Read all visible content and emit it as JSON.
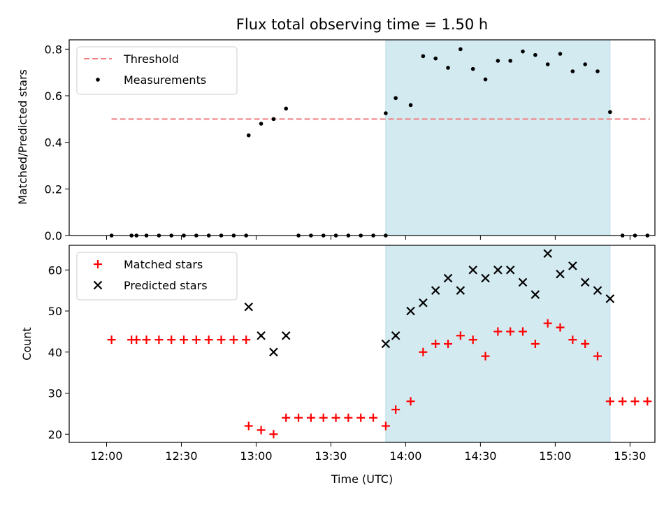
{
  "chart_data": [
    {
      "type": "scatter",
      "title": "Flux total observing time = 1.50 h",
      "xlabel": "",
      "ylabel": "Matched/Predicted stars",
      "ylim": [
        0,
        0.84
      ],
      "yticks": [
        "0.0",
        "0.2",
        "0.4",
        "0.6",
        "0.8"
      ],
      "shaded_region": {
        "start": "13:52",
        "end": "15:22",
        "color": "#d3eaf1"
      },
      "legend_position": "top-left",
      "threshold": {
        "name": "Threshold",
        "value": 0.5,
        "x_start": "12:02",
        "x_end": "15:38",
        "color": "#f08080"
      },
      "series": [
        {
          "name": "Measurements",
          "marker": "dot",
          "color": "#000000",
          "x": [
            "12:02",
            "12:10",
            "12:12",
            "12:16",
            "12:21",
            "12:26",
            "12:31",
            "12:36",
            "12:41",
            "12:46",
            "12:51",
            "12:56",
            "12:57",
            "13:02",
            "13:07",
            "13:12",
            "13:17",
            "13:22",
            "13:27",
            "13:32",
            "13:37",
            "13:42",
            "13:47",
            "13:52",
            "13:52",
            "13:56",
            "14:02",
            "14:07",
            "14:12",
            "14:17",
            "14:22",
            "14:27",
            "14:32",
            "14:37",
            "14:42",
            "14:47",
            "14:52",
            "14:57",
            "15:02",
            "15:07",
            "15:12",
            "15:17",
            "15:22",
            "15:27",
            "15:32",
            "15:37"
          ],
          "y": [
            0,
            0,
            0,
            0,
            0,
            0,
            0,
            0,
            0,
            0,
            0,
            0,
            0.43,
            0.48,
            0.5,
            0.545,
            0,
            0,
            0,
            0,
            0,
            0,
            0,
            0,
            0.525,
            0.59,
            0.56,
            0.77,
            0.76,
            0.72,
            0.8,
            0.715,
            0.67,
            0.75,
            0.75,
            0.79,
            0.775,
            0.735,
            0.78,
            0.705,
            0.735,
            0.705,
            0.53,
            0,
            0,
            0
          ]
        }
      ]
    },
    {
      "type": "scatter",
      "title": "",
      "xlabel": "Time (UTC)",
      "ylabel": "Count",
      "ylim": [
        18,
        66
      ],
      "yticks": [
        "20",
        "30",
        "40",
        "50",
        "60"
      ],
      "xticks": [
        "12:00",
        "12:30",
        "13:00",
        "13:30",
        "14:00",
        "14:30",
        "15:00",
        "15:30"
      ],
      "shaded_region": {
        "start": "13:52",
        "end": "15:22",
        "color": "#d3eaf1"
      },
      "legend_position": "top-left",
      "series": [
        {
          "name": "Matched stars",
          "marker": "plus",
          "color": "#ff0000",
          "x": [
            "12:02",
            "12:10",
            "12:12",
            "12:16",
            "12:21",
            "12:26",
            "12:31",
            "12:36",
            "12:41",
            "12:46",
            "12:51",
            "12:56",
            "12:57",
            "13:02",
            "13:07",
            "13:12",
            "13:17",
            "13:22",
            "13:27",
            "13:32",
            "13:37",
            "13:42",
            "13:47",
            "13:52",
            "13:56",
            "14:02",
            "14:07",
            "14:12",
            "14:17",
            "14:22",
            "14:27",
            "14:32",
            "14:37",
            "14:42",
            "14:47",
            "14:52",
            "14:57",
            "15:02",
            "15:07",
            "15:12",
            "15:17",
            "15:22",
            "15:27",
            "15:32",
            "15:37"
          ],
          "y": [
            43,
            43,
            43,
            43,
            43,
            43,
            43,
            43,
            43,
            43,
            43,
            43,
            22,
            21,
            20,
            24,
            24,
            24,
            24,
            24,
            24,
            24,
            24,
            22,
            26,
            28,
            40,
            42,
            42,
            44,
            43,
            39,
            45,
            45,
            45,
            42,
            47,
            46,
            43,
            42,
            39,
            28,
            28,
            28,
            28
          ]
        },
        {
          "name": "Predicted stars",
          "marker": "x",
          "color": "#000000",
          "x": [
            "12:57",
            "13:02",
            "13:07",
            "13:12",
            "13:52",
            "13:56",
            "14:02",
            "14:07",
            "14:12",
            "14:17",
            "14:22",
            "14:27",
            "14:32",
            "14:37",
            "14:42",
            "14:47",
            "14:52",
            "14:57",
            "15:02",
            "15:07",
            "15:12",
            "15:17",
            "15:22"
          ],
          "y": [
            51,
            44,
            40,
            44,
            42,
            44,
            50,
            52,
            55,
            58,
            55,
            60,
            58,
            60,
            60,
            57,
            54,
            64,
            59,
            61,
            57,
            55,
            53
          ]
        }
      ]
    }
  ]
}
